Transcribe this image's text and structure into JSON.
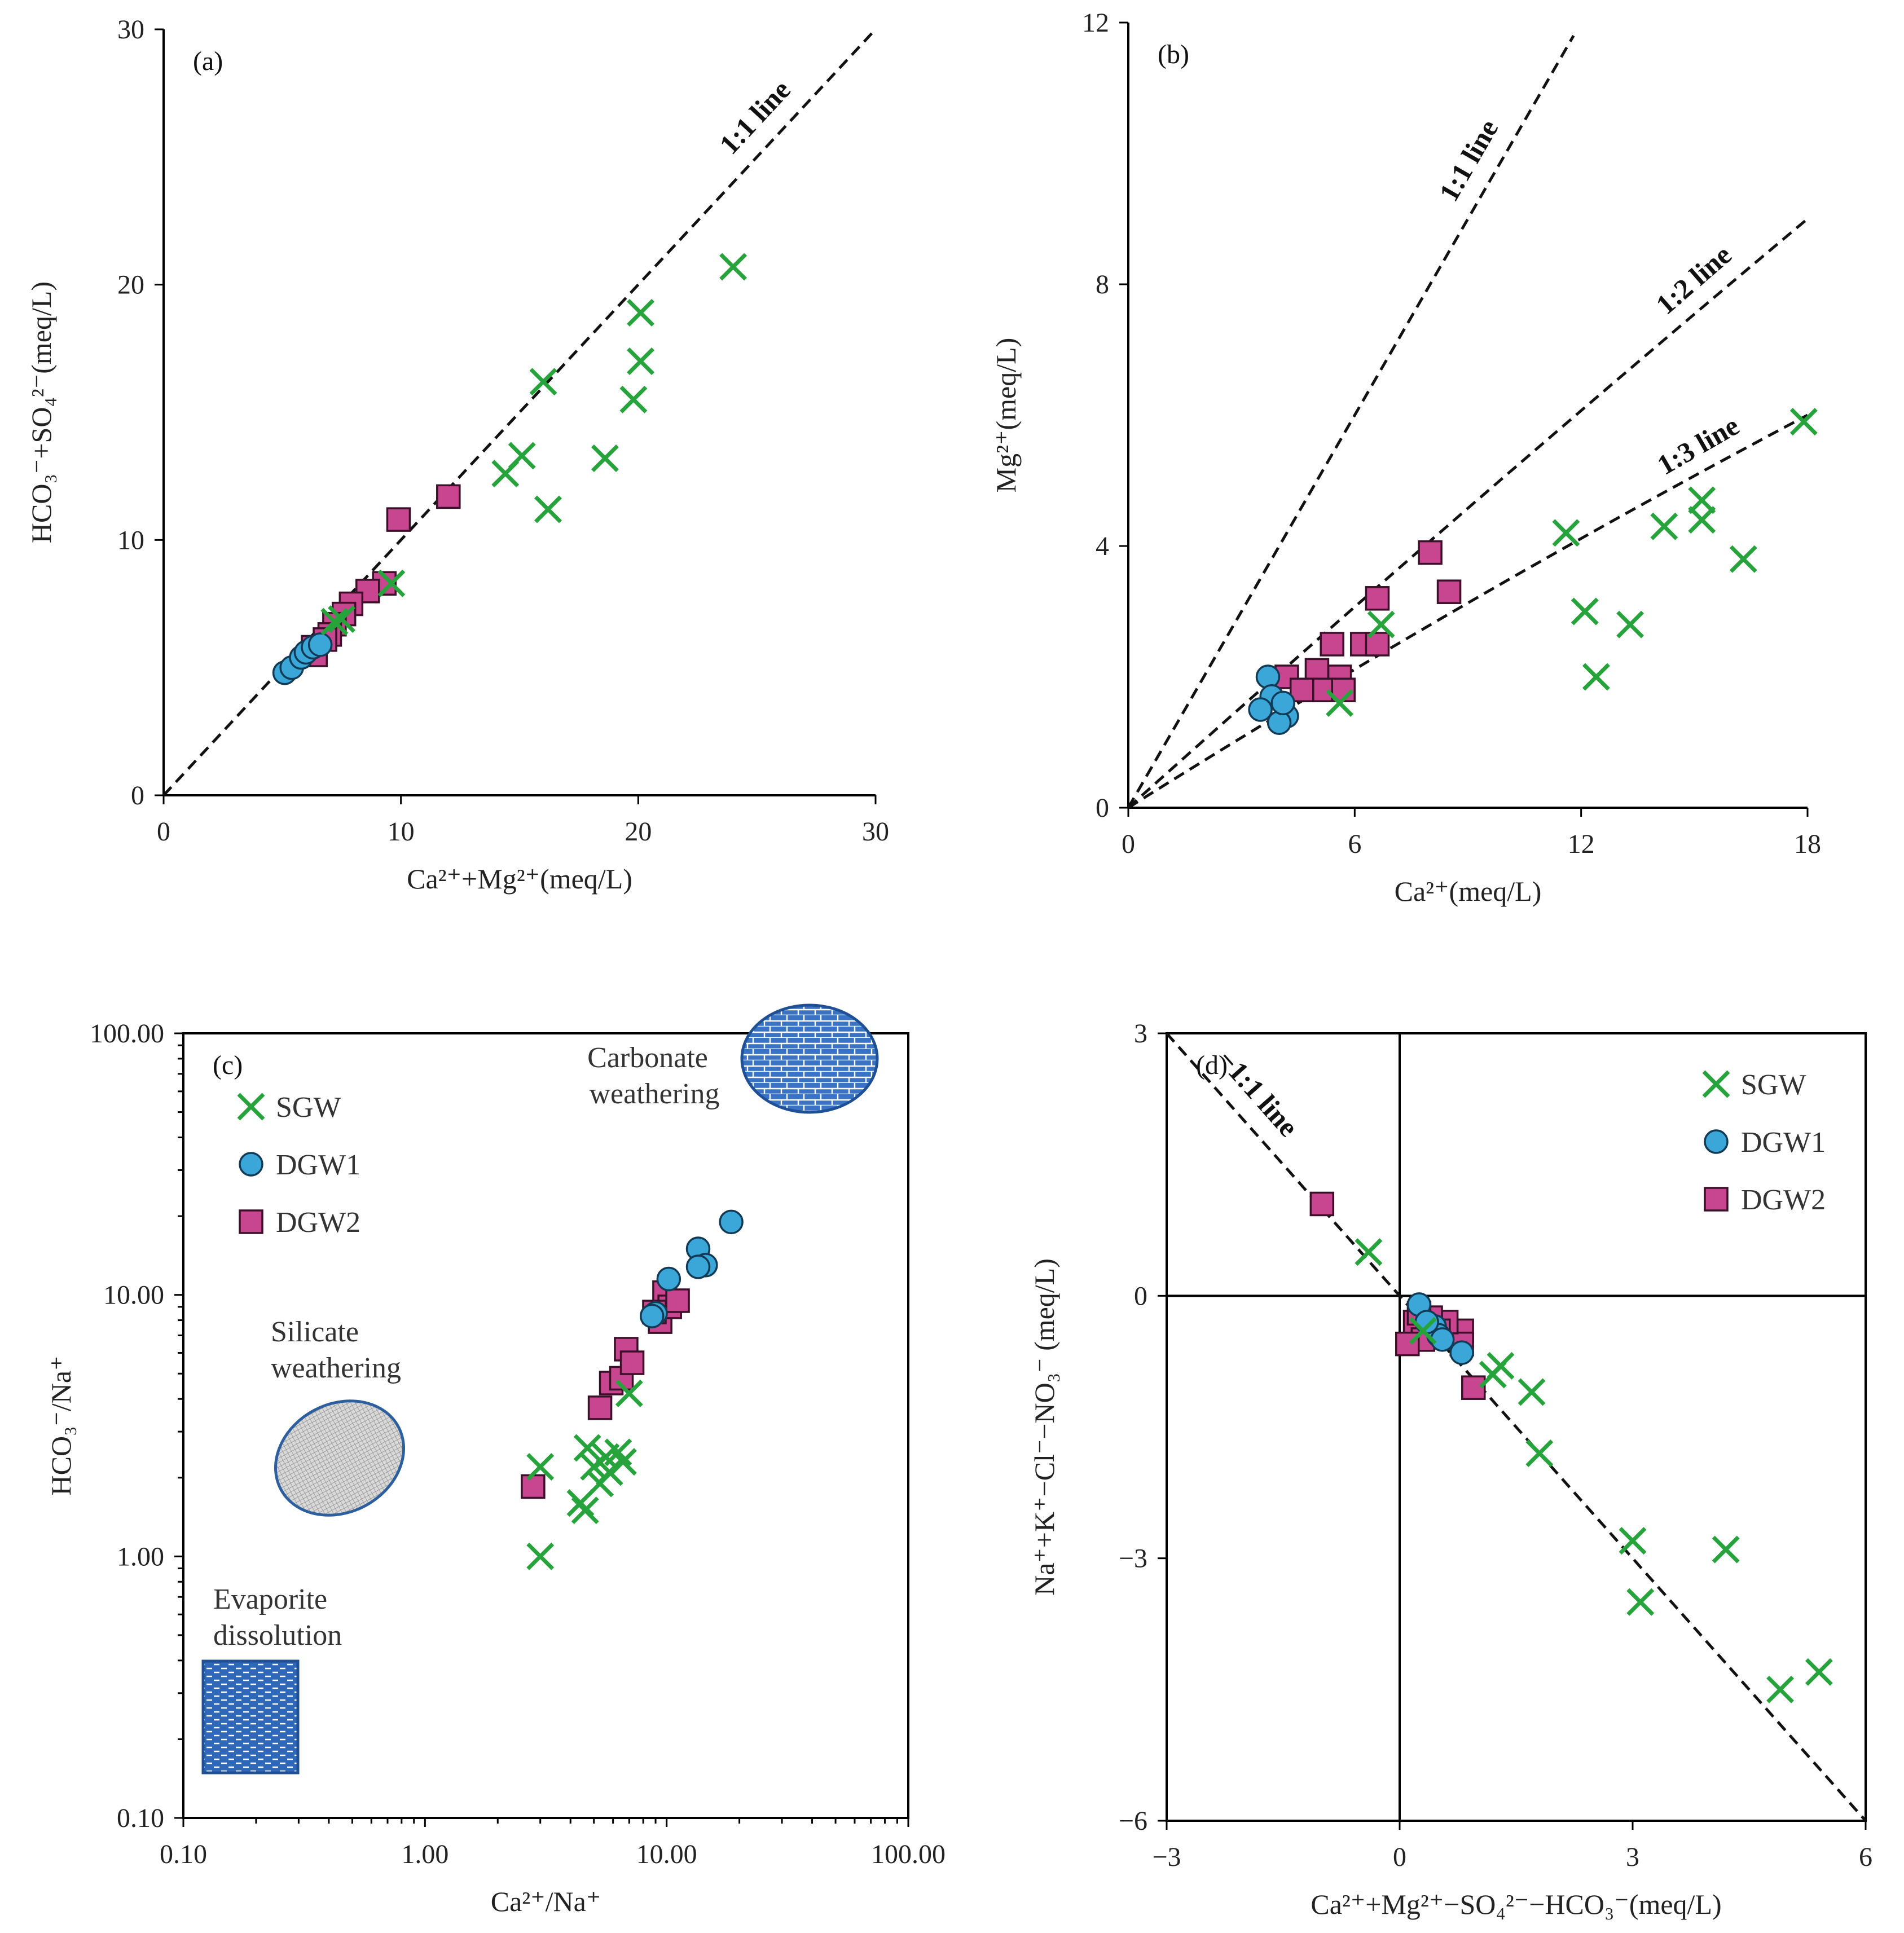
{
  "colors": {
    "sgw": "#27a33c",
    "dgw1_fill": "#3aa7d8",
    "dgw1_stroke": "#123a55",
    "dgw2_fill": "#c8468f",
    "dgw2_stroke": "#3b1028",
    "region": "#2e64b0"
  },
  "legend": {
    "sgw": "SGW",
    "dgw1": "DGW1",
    "dgw2": "DGW2"
  },
  "chart_data": [
    {
      "id": "a",
      "type": "scatter",
      "panel_label": "(a)",
      "xlabel": "Ca²⁺+Mg²⁺(meq/L)",
      "ylabel": "HCO₃⁻+SO₄²⁻(meq/L)",
      "xlim": [
        0,
        30
      ],
      "ylim": [
        0,
        30
      ],
      "xticks": [
        0,
        10,
        20,
        30
      ],
      "yticks": [
        0,
        10,
        20,
        30
      ],
      "reference_lines": [
        {
          "label": "1:1 line",
          "from": [
            0,
            0
          ],
          "to": [
            30,
            30
          ]
        }
      ],
      "series": [
        {
          "name": "SGW",
          "marker": "x",
          "points": [
            [
              24.0,
              20.7
            ],
            [
              20.1,
              18.9
            ],
            [
              20.1,
              17.0
            ],
            [
              19.8,
              15.5
            ],
            [
              16.0,
              16.2
            ],
            [
              18.6,
              13.2
            ],
            [
              15.1,
              13.3
            ],
            [
              14.4,
              12.6
            ],
            [
              16.2,
              11.2
            ],
            [
              9.6,
              8.3
            ],
            [
              7.5,
              6.9
            ],
            [
              7.2,
              6.8
            ]
          ]
        },
        {
          "name": "DGW1",
          "marker": "circle",
          "points": [
            [
              5.1,
              4.8
            ],
            [
              5.4,
              5.0
            ],
            [
              5.8,
              5.4
            ],
            [
              6.0,
              5.6
            ],
            [
              6.3,
              5.8
            ],
            [
              6.6,
              5.9
            ]
          ]
        },
        {
          "name": "DGW2",
          "marker": "square",
          "points": [
            [
              12.0,
              11.7
            ],
            [
              9.9,
              10.8
            ],
            [
              9.3,
              8.3
            ],
            [
              8.6,
              8.0
            ],
            [
              7.9,
              7.5
            ],
            [
              7.6,
              7.1
            ],
            [
              7.2,
              6.7
            ],
            [
              7.0,
              6.3
            ],
            [
              6.8,
              6.1
            ],
            [
              6.3,
              5.8
            ],
            [
              6.4,
              5.5
            ]
          ]
        }
      ]
    },
    {
      "id": "b",
      "type": "scatter",
      "panel_label": "(b)",
      "xlabel": "Ca²⁺(meq/L)",
      "ylabel": "Mg²⁺(meq/L)",
      "xlim": [
        0,
        18
      ],
      "ylim": [
        0,
        12
      ],
      "xticks": [
        0,
        6,
        12,
        18
      ],
      "yticks": [
        0,
        4,
        8,
        12
      ],
      "reference_lines": [
        {
          "label": "1:1 line",
          "from": [
            0,
            0
          ],
          "to": [
            11.8,
            11.8
          ]
        },
        {
          "label": "1:2 line",
          "from": [
            0,
            0
          ],
          "to": [
            18,
            9
          ]
        },
        {
          "label": "1:3 line",
          "from": [
            0,
            0
          ],
          "to": [
            18,
            6
          ]
        }
      ],
      "series": [
        {
          "name": "SGW",
          "marker": "x",
          "points": [
            [
              17.9,
              5.9
            ],
            [
              15.2,
              4.7
            ],
            [
              15.2,
              4.4
            ],
            [
              14.2,
              4.3
            ],
            [
              16.3,
              3.8
            ],
            [
              11.6,
              4.2
            ],
            [
              12.1,
              3.0
            ],
            [
              13.3,
              2.8
            ],
            [
              12.4,
              2.0
            ],
            [
              6.7,
              2.8
            ],
            [
              5.6,
              1.6
            ]
          ]
        },
        {
          "name": "DGW1",
          "marker": "circle",
          "points": [
            [
              3.7,
              2.0
            ],
            [
              3.8,
              1.7
            ],
            [
              3.5,
              1.5
            ],
            [
              4.2,
              1.4
            ],
            [
              4.0,
              1.3
            ],
            [
              4.1,
              1.6
            ]
          ]
        },
        {
          "name": "DGW2",
          "marker": "square",
          "points": [
            [
              8.0,
              3.9
            ],
            [
              8.5,
              3.3
            ],
            [
              6.6,
              3.2
            ],
            [
              5.4,
              2.5
            ],
            [
              6.2,
              2.5
            ],
            [
              6.6,
              2.5
            ],
            [
              4.2,
              2.0
            ],
            [
              5.0,
              2.1
            ],
            [
              5.6,
              2.0
            ],
            [
              4.6,
              1.8
            ],
            [
              5.2,
              1.8
            ],
            [
              5.7,
              1.8
            ]
          ]
        }
      ]
    },
    {
      "id": "c",
      "type": "scatter",
      "scale": "log-log",
      "panel_label": "(c)",
      "xlabel": "Ca²⁺/Na⁺",
      "ylabel": "HCO₃⁻/Na⁺",
      "xlim": [
        0.1,
        100
      ],
      "ylim": [
        0.1,
        100
      ],
      "xticks": [
        0.1,
        1,
        10,
        100
      ],
      "xtick_labels": [
        "0.10",
        "1.00",
        "10.00",
        "100.00"
      ],
      "yticks": [
        0.1,
        1,
        10,
        100
      ],
      "ytick_labels": [
        "0.10",
        "1.00",
        "10.00",
        "100.00"
      ],
      "regions": [
        {
          "name": "Carbonate weathering",
          "line1": "Carbonate",
          "line2": "weathering"
        },
        {
          "name": "Silicate weathering",
          "line1": "Silicate",
          "line2": "weathering"
        },
        {
          "name": "Evaporite dissolution",
          "line1": "Evaporite",
          "line2": "dissolution"
        }
      ],
      "series": [
        {
          "name": "SGW",
          "marker": "x",
          "points": [
            [
              3.0,
              2.2
            ],
            [
              3.0,
              1.0
            ],
            [
              4.4,
              1.6
            ],
            [
              4.6,
              1.5
            ],
            [
              4.7,
              2.6
            ],
            [
              5.0,
              2.2
            ],
            [
              5.3,
              1.9
            ],
            [
              5.6,
              2.4
            ],
            [
              5.8,
              2.1
            ],
            [
              6.3,
              2.5
            ],
            [
              6.6,
              2.3
            ],
            [
              7.0,
              4.2
            ]
          ]
        },
        {
          "name": "DGW1",
          "marker": "circle",
          "points": [
            [
              18.5,
              19.0
            ],
            [
              13.5,
              15.0
            ],
            [
              14.5,
              13.0
            ],
            [
              13.5,
              12.8
            ],
            [
              10.2,
              11.5
            ],
            [
              9.0,
              8.5
            ],
            [
              8.7,
              8.3
            ]
          ]
        },
        {
          "name": "DGW2",
          "marker": "square",
          "points": [
            [
              2.8,
              1.85
            ],
            [
              5.3,
              3.7
            ],
            [
              5.9,
              4.6
            ],
            [
              6.5,
              4.8
            ],
            [
              6.8,
              6.2
            ],
            [
              7.2,
              5.5
            ],
            [
              9.4,
              7.9
            ],
            [
              9.8,
              10.2
            ],
            [
              10.3,
              9.0
            ],
            [
              11.1,
              9.5
            ],
            [
              8.9,
              8.6
            ]
          ]
        }
      ]
    },
    {
      "id": "d",
      "type": "scatter",
      "panel_label": "(d)",
      "xlabel": "Ca²⁺+Mg²⁺−SO₄²⁻−HCO₃⁻(meq/L)",
      "ylabel": "Na⁺+K⁺−Cl⁻−NO₃⁻ (meq/L)",
      "xlim": [
        -3,
        6
      ],
      "ylim": [
        -6,
        3
      ],
      "xticks": [
        -3,
        0,
        3,
        6
      ],
      "xtick_labels": [
        "−3",
        "0",
        "3",
        "6"
      ],
      "yticks": [
        -6,
        -3,
        0,
        3
      ],
      "ytick_labels": [
        "−6",
        "−3",
        "0",
        "3"
      ],
      "reference_lines": [
        {
          "label": "−1:1 line",
          "from": [
            -3,
            3
          ],
          "to": [
            6,
            -6
          ]
        }
      ],
      "series": [
        {
          "name": "SGW",
          "marker": "x",
          "points": [
            [
              -0.4,
              0.5
            ],
            [
              0.3,
              -0.4
            ],
            [
              1.2,
              -0.9
            ],
            [
              1.3,
              -0.8
            ],
            [
              1.7,
              -1.1
            ],
            [
              1.8,
              -1.8
            ],
            [
              3.0,
              -2.8
            ],
            [
              3.1,
              -3.5
            ],
            [
              4.2,
              -2.9
            ],
            [
              4.9,
              -4.5
            ],
            [
              5.4,
              -4.3
            ]
          ]
        },
        {
          "name": "DGW1",
          "marker": "circle",
          "points": [
            [
              0.25,
              -0.1
            ],
            [
              0.45,
              -0.35
            ],
            [
              0.5,
              -0.45
            ],
            [
              0.35,
              -0.3
            ],
            [
              0.55,
              -0.5
            ],
            [
              0.8,
              -0.65
            ]
          ]
        },
        {
          "name": "DGW2",
          "marker": "square",
          "points": [
            [
              -1.0,
              1.05
            ],
            [
              0.95,
              -1.05
            ],
            [
              0.8,
              -0.4
            ],
            [
              0.8,
              -0.55
            ],
            [
              0.6,
              -0.3
            ],
            [
              0.4,
              -0.25
            ],
            [
              0.5,
              -0.4
            ],
            [
              0.2,
              -0.3
            ],
            [
              0.3,
              -0.5
            ],
            [
              0.1,
              -0.55
            ],
            [
              0.25,
              -0.2
            ]
          ]
        }
      ]
    }
  ]
}
